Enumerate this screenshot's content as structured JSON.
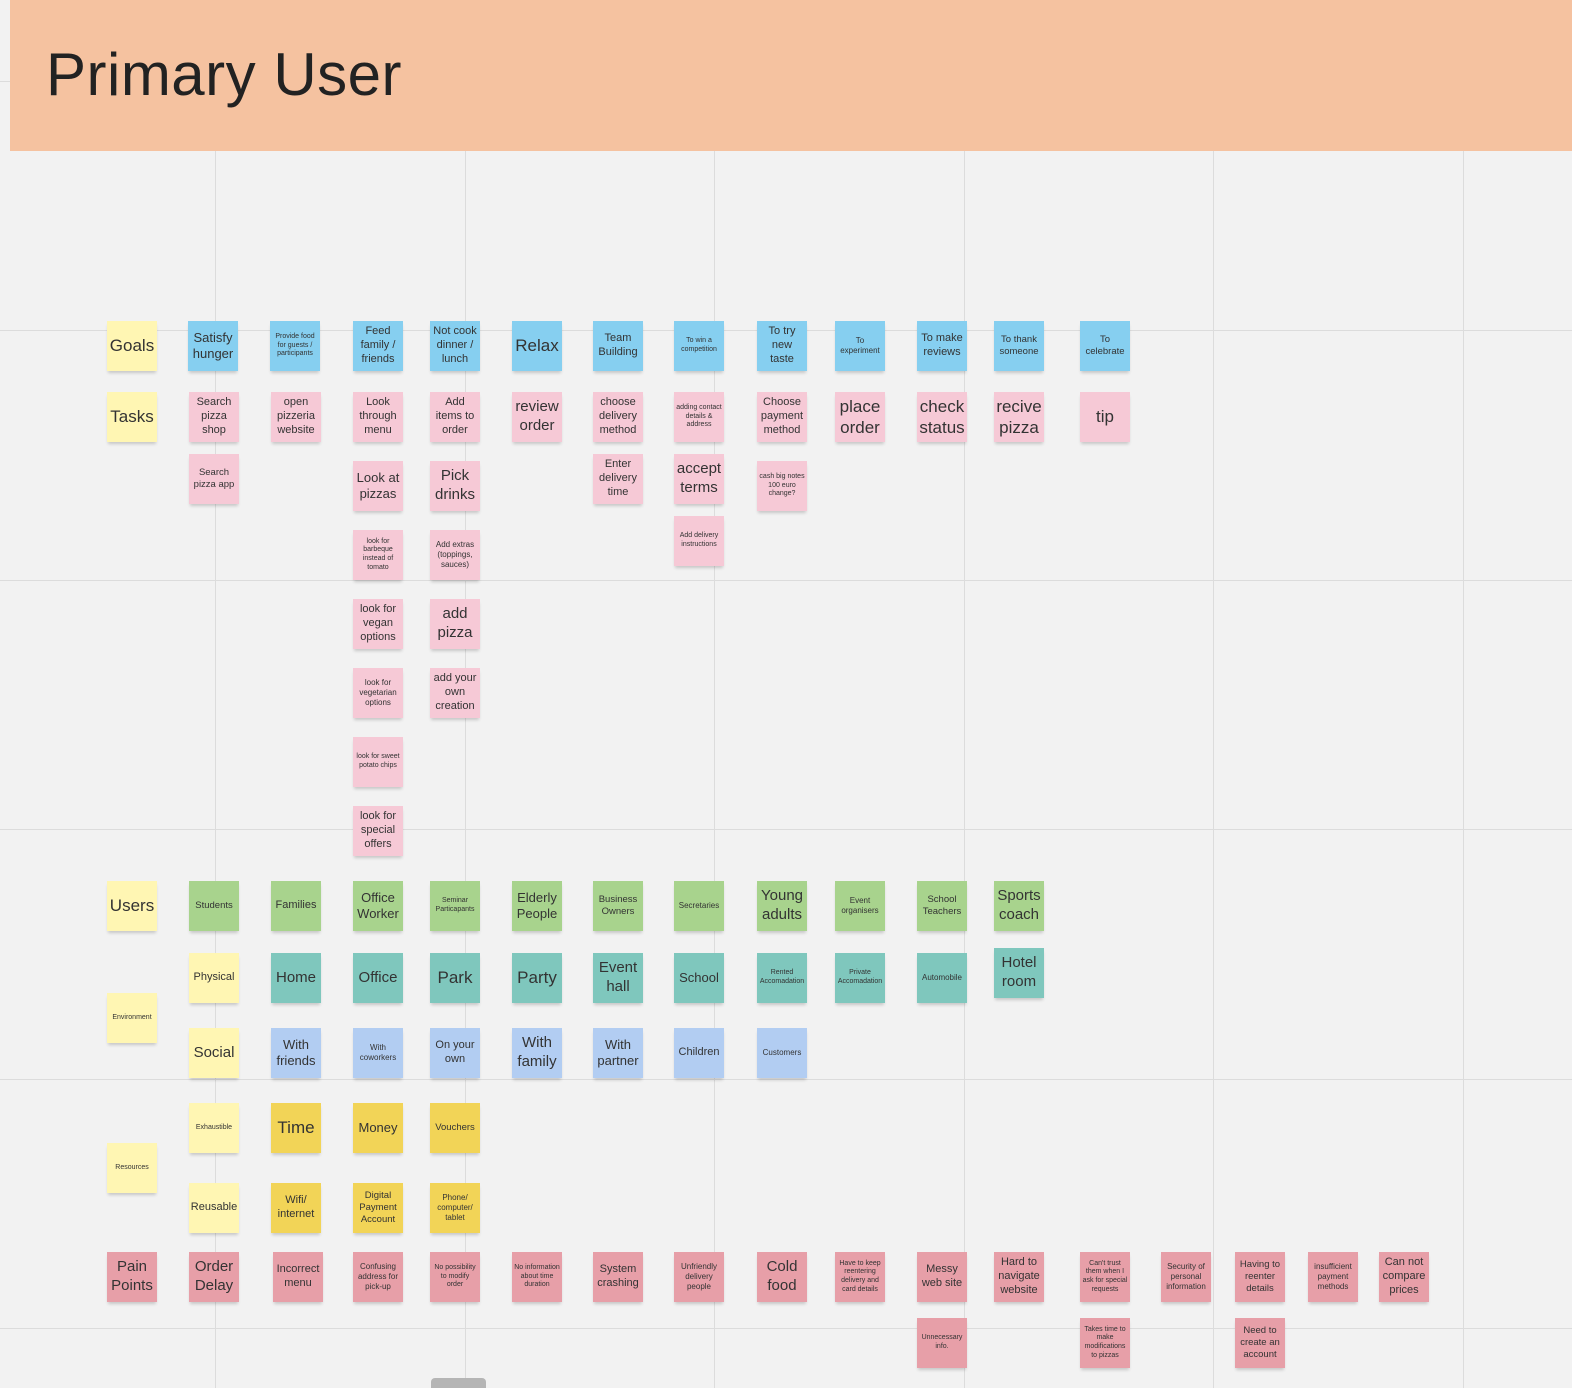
{
  "board": {
    "title": "Primary User",
    "rows": {
      "goals": "Goals",
      "tasks": "Tasks",
      "users": "Users",
      "environment": "Environment",
      "resources": "Resources",
      "pain_points": "Pain Points"
    },
    "sub_rows": {
      "physical": "Physical",
      "social": "Social",
      "exhaustible": "Exhaustible",
      "reusable": "Reusable"
    },
    "goals": [
      "Satisfy hunger",
      "Provide food for guests / participants",
      "Feed family / friends",
      "Not cook dinner / lunch",
      "Relax",
      "Team Building",
      "To win a competition",
      "To try new taste",
      "To experiment",
      "To make reviews",
      "To thank someone",
      "To celebrate"
    ],
    "tasks": {
      "col1": [
        "Search pizza shop",
        "Search pizza app"
      ],
      "col2": [
        "open pizzeria website"
      ],
      "col3": [
        "Look through menu",
        "Look at pizzas",
        "look for barbeque instead of tomato",
        "look for vegan options",
        "look for vegetarian options",
        "look for sweet potato chips",
        "look for special offers"
      ],
      "col4": [
        "Add items to order",
        "Pick drinks",
        "Add extras (toppings, sauces)",
        "add pizza",
        "add your own creation"
      ],
      "col5": [
        "review order"
      ],
      "col6": [
        "choose delivery method",
        "Enter delivery time"
      ],
      "col7": [
        "adding contact details & address",
        "accept terms",
        "Add delivery instructions"
      ],
      "col8": [
        "Choose payment method",
        "cash big notes 100 euro change?"
      ],
      "col9": [
        "place order"
      ],
      "col10": [
        "check status"
      ],
      "col11": [
        "recive pizza"
      ],
      "col12": [
        "tip"
      ]
    },
    "users": [
      "Students",
      "Families",
      "Office Worker",
      "Seminar Particapants",
      "Elderly People",
      "Business Owners",
      "Secretaries",
      "Young adults",
      "Event organisers",
      "School Teachers",
      "Sports coach"
    ],
    "environment_physical": [
      "Home",
      "Office",
      "Park",
      "Party",
      "Event hall",
      "School",
      "Rented Accomadation",
      "Private Accomadation",
      "Automobile",
      "Hotel room"
    ],
    "environment_social": [
      "With friends",
      "With coworkers",
      "On your own",
      "With family",
      "With partner",
      "Children",
      "Customers"
    ],
    "resources_exhaustible": [
      "Time",
      "Money",
      "Vouchers"
    ],
    "resources_reusable": [
      "Wifi/ internet",
      "Digital Payment Account",
      "Phone/ computer/ tablet"
    ],
    "pain_points": [
      "Order Delay",
      "Incorrect menu",
      "Confusing address for pick-up",
      "No possibility to modify order",
      "No information about time duration",
      "System crashing",
      "Unfriendly delivery people",
      "Cold food",
      "Have to keep reentering delivery and card details",
      "Messy web site",
      "Hard to navigate website",
      "Can't trust them when I ask for special requests",
      "Security of personal information",
      "Having to reenter details",
      "insufficient payment methods",
      "Can not compare prices"
    ],
    "pain_points_second": [
      "Unnecessary info.",
      "Takes time to make modifications to pizzas",
      "Need to create an account"
    ],
    "colors": {
      "banner": "#f5c2a0",
      "label_yellow": "#fff6b3",
      "goal_blue": "#86cff0",
      "task_pink": "#f6c9d6",
      "user_green": "#a8d38d",
      "physical_teal": "#7fc7bd",
      "social_blue": "#b2cdf2",
      "resource_gold": "#f2d457",
      "pain_red": "#e79fa8"
    }
  }
}
